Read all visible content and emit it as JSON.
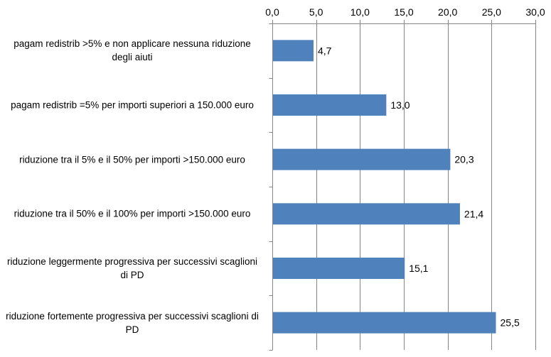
{
  "chart_data": {
    "type": "bar",
    "orientation": "horizontal",
    "categories": [
      "pagam redistrib >5% e non applicare nessuna riduzione degli aiuti",
      "pagam redistrib =5% per importi superiori a 150.000 euro",
      "riduzione tra il 5% e il 50% per importi >150.000 euro",
      "riduzione tra il 50% e il 100% per importi >150.000 euro",
      "riduzione leggermente progressiva per successivi scaglioni di PD",
      "riduzione fortemente progressiva per successivi scaglioni di PD"
    ],
    "values": [
      4.7,
      13.0,
      20.3,
      21.4,
      15.1,
      25.5
    ],
    "data_labels": [
      "4,7",
      "13,0",
      "20,3",
      "21,4",
      "15,1",
      "25,5"
    ],
    "xlim": [
      0,
      30
    ],
    "xticks": [
      0,
      5,
      10,
      15,
      20,
      25,
      30
    ],
    "xtick_labels": [
      "0,0",
      "5,0",
      "10,0",
      "15,0",
      "20,0",
      "25,0",
      "30,0"
    ],
    "axis_position": "top",
    "grid": true,
    "bar_color": "#4F81BD",
    "grid_color": "#868686",
    "title": "",
    "xlabel": "",
    "ylabel": ""
  }
}
